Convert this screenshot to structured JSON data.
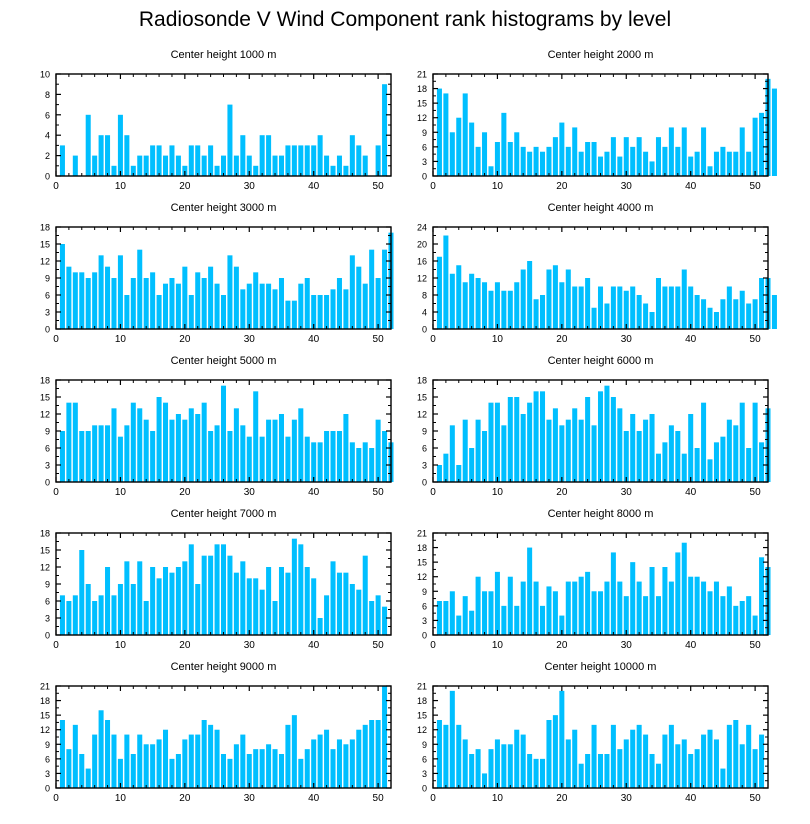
{
  "title": "Radiosonde V Wind Component rank histograms by level",
  "bar_color": "#00BFFF",
  "chart_data": [
    {
      "type": "bar",
      "title": "Center height 1000 m",
      "xlim": [
        0,
        52
      ],
      "ylim": [
        0,
        10
      ],
      "xticks": [
        0,
        10,
        20,
        30,
        40,
        50
      ],
      "yticks": [
        0,
        2,
        4,
        6,
        8,
        10
      ],
      "values": [
        3,
        0,
        2,
        0,
        6,
        2,
        4,
        4,
        1,
        6,
        4,
        1,
        2,
        2,
        3,
        3,
        2,
        3,
        2,
        1,
        3,
        3,
        2,
        3,
        1,
        2,
        7,
        2,
        4,
        2,
        1,
        4,
        4,
        2,
        2,
        3,
        3,
        3,
        3,
        3,
        4,
        2,
        1,
        2,
        1,
        4,
        3,
        2,
        0,
        3,
        9
      ]
    },
    {
      "type": "bar",
      "title": "Center height 2000 m",
      "xlim": [
        0,
        52
      ],
      "ylim": [
        0,
        21
      ],
      "xticks": [
        0,
        10,
        20,
        30,
        40,
        50
      ],
      "yticks": [
        0,
        3,
        6,
        9,
        12,
        15,
        18,
        21
      ],
      "values": [
        18,
        17,
        9,
        12,
        17,
        11,
        6,
        9,
        2,
        7,
        13,
        7,
        9,
        6,
        5,
        6,
        5,
        6,
        8,
        11,
        6,
        10,
        5,
        7,
        7,
        4,
        5,
        8,
        4,
        8,
        6,
        8,
        5,
        3,
        8,
        6,
        10,
        6,
        10,
        4,
        5,
        10,
        2,
        5,
        6,
        5,
        5,
        10,
        5,
        12,
        13,
        20,
        18
      ]
    },
    {
      "type": "bar",
      "title": "Center height 3000 m",
      "xlim": [
        0,
        52
      ],
      "ylim": [
        0,
        18
      ],
      "xticks": [
        0,
        10,
        20,
        30,
        40,
        50
      ],
      "yticks": [
        0,
        3,
        6,
        9,
        12,
        15,
        18
      ],
      "values": [
        15,
        11,
        10,
        10,
        9,
        10,
        13,
        11,
        9,
        13,
        6,
        9,
        14,
        9,
        10,
        6,
        8,
        9,
        8,
        11,
        6,
        10,
        9,
        11,
        8,
        6,
        13,
        11,
        7,
        8,
        10,
        8,
        8,
        7,
        9,
        5,
        5,
        8,
        9,
        6,
        6,
        6,
        7,
        9,
        7,
        13,
        11,
        8,
        14,
        9,
        14,
        17
      ]
    },
    {
      "type": "bar",
      "title": "Center height 4000 m",
      "xlim": [
        0,
        52
      ],
      "ylim": [
        0,
        24
      ],
      "xticks": [
        0,
        10,
        20,
        30,
        40,
        50
      ],
      "yticks": [
        0,
        4,
        8,
        12,
        16,
        20,
        24
      ],
      "values": [
        17,
        22,
        13,
        15,
        11,
        13,
        12,
        11,
        9,
        11,
        9,
        9,
        11,
        14,
        16,
        7,
        8,
        14,
        15,
        11,
        14,
        10,
        10,
        12,
        5,
        10,
        6,
        10,
        10,
        9,
        10,
        8,
        6,
        4,
        12,
        10,
        10,
        10,
        14,
        10,
        8,
        7,
        5,
        4,
        7,
        10,
        7,
        9,
        6,
        7,
        12,
        12,
        8
      ]
    },
    {
      "type": "bar",
      "title": "Center height 5000 m",
      "xlim": [
        0,
        52
      ],
      "ylim": [
        0,
        18
      ],
      "xticks": [
        0,
        10,
        20,
        30,
        40,
        50
      ],
      "yticks": [
        0,
        3,
        6,
        9,
        12,
        15,
        18
      ],
      "values": [
        9,
        14,
        14,
        9,
        9,
        10,
        10,
        10,
        13,
        8,
        10,
        14,
        13,
        11,
        9,
        15,
        14,
        11,
        12,
        11,
        13,
        12,
        14,
        9,
        10,
        17,
        9,
        13,
        10,
        8,
        16,
        8,
        11,
        11,
        12,
        8,
        11,
        13,
        8,
        7,
        7,
        9,
        9,
        9,
        12,
        7,
        6,
        7,
        6,
        11,
        9,
        7
      ]
    },
    {
      "type": "bar",
      "title": "Center height 6000 m",
      "xlim": [
        0,
        52
      ],
      "ylim": [
        0,
        18
      ],
      "xticks": [
        0,
        10,
        20,
        30,
        40,
        50
      ],
      "yticks": [
        0,
        3,
        6,
        9,
        12,
        15,
        18
      ],
      "values": [
        3,
        5,
        10,
        3,
        11,
        6,
        11,
        9,
        14,
        14,
        10,
        15,
        15,
        12,
        14,
        16,
        16,
        11,
        13,
        10,
        11,
        13,
        11,
        15,
        10,
        16,
        17,
        15,
        13,
        9,
        12,
        9,
        11,
        12,
        5,
        7,
        10,
        9,
        5,
        12,
        6,
        14,
        4,
        7,
        8,
        11,
        10,
        14,
        6,
        14,
        7,
        13
      ]
    },
    {
      "type": "bar",
      "title": "Center height 7000 m",
      "xlim": [
        0,
        52
      ],
      "ylim": [
        0,
        18
      ],
      "xticks": [
        0,
        10,
        20,
        30,
        40,
        50
      ],
      "yticks": [
        0,
        3,
        6,
        9,
        12,
        15,
        18
      ],
      "values": [
        7,
        6,
        7,
        15,
        9,
        6,
        7,
        12,
        7,
        9,
        13,
        9,
        13,
        6,
        12,
        10,
        12,
        11,
        12,
        13,
        16,
        9,
        14,
        14,
        16,
        16,
        14,
        11,
        13,
        10,
        10,
        8,
        12,
        6,
        12,
        11,
        17,
        16,
        12,
        10,
        3,
        7,
        13,
        11,
        11,
        9,
        8,
        14,
        6,
        7,
        5
      ]
    },
    {
      "type": "bar",
      "title": "Center height 8000 m",
      "xlim": [
        0,
        52
      ],
      "ylim": [
        0,
        21
      ],
      "xticks": [
        0,
        10,
        20,
        30,
        40,
        50
      ],
      "yticks": [
        0,
        3,
        6,
        9,
        12,
        15,
        18,
        21
      ],
      "values": [
        7,
        7,
        9,
        4,
        8,
        5,
        12,
        9,
        9,
        13,
        6,
        12,
        6,
        11,
        18,
        11,
        6,
        10,
        9,
        4,
        11,
        11,
        12,
        13,
        9,
        9,
        11,
        17,
        11,
        8,
        15,
        11,
        8,
        14,
        8,
        14,
        11,
        17,
        19,
        12,
        12,
        11,
        9,
        11,
        8,
        10,
        6,
        7,
        8,
        4,
        16,
        14
      ]
    },
    {
      "type": "bar",
      "title": "Center height 9000 m",
      "xlim": [
        0,
        52
      ],
      "ylim": [
        0,
        21
      ],
      "xticks": [
        0,
        10,
        20,
        30,
        40,
        50
      ],
      "yticks": [
        0,
        3,
        6,
        9,
        12,
        15,
        18,
        21
      ],
      "values": [
        14,
        8,
        13,
        7,
        4,
        11,
        16,
        14,
        11,
        6,
        11,
        7,
        11,
        9,
        9,
        10,
        12,
        6,
        7,
        10,
        11,
        11,
        14,
        13,
        12,
        7,
        6,
        9,
        11,
        7,
        8,
        8,
        9,
        8,
        7,
        13,
        15,
        6,
        8,
        10,
        11,
        12,
        8,
        10,
        9,
        10,
        12,
        13,
        14,
        14,
        21
      ]
    },
    {
      "type": "bar",
      "title": "Center height 10000 m",
      "xlim": [
        0,
        52
      ],
      "ylim": [
        0,
        21
      ],
      "xticks": [
        0,
        10,
        20,
        30,
        40,
        50
      ],
      "yticks": [
        0,
        3,
        6,
        9,
        12,
        15,
        18,
        21
      ],
      "values": [
        14,
        13,
        20,
        13,
        10,
        7,
        8,
        3,
        8,
        10,
        9,
        9,
        12,
        11,
        7,
        6,
        6,
        14,
        15,
        20,
        10,
        12,
        5,
        7,
        13,
        7,
        7,
        13,
        8,
        10,
        12,
        13,
        11,
        7,
        5,
        11,
        13,
        9,
        10,
        7,
        8,
        11,
        12,
        10,
        4,
        13,
        14,
        9,
        13,
        8,
        11
      ]
    }
  ]
}
